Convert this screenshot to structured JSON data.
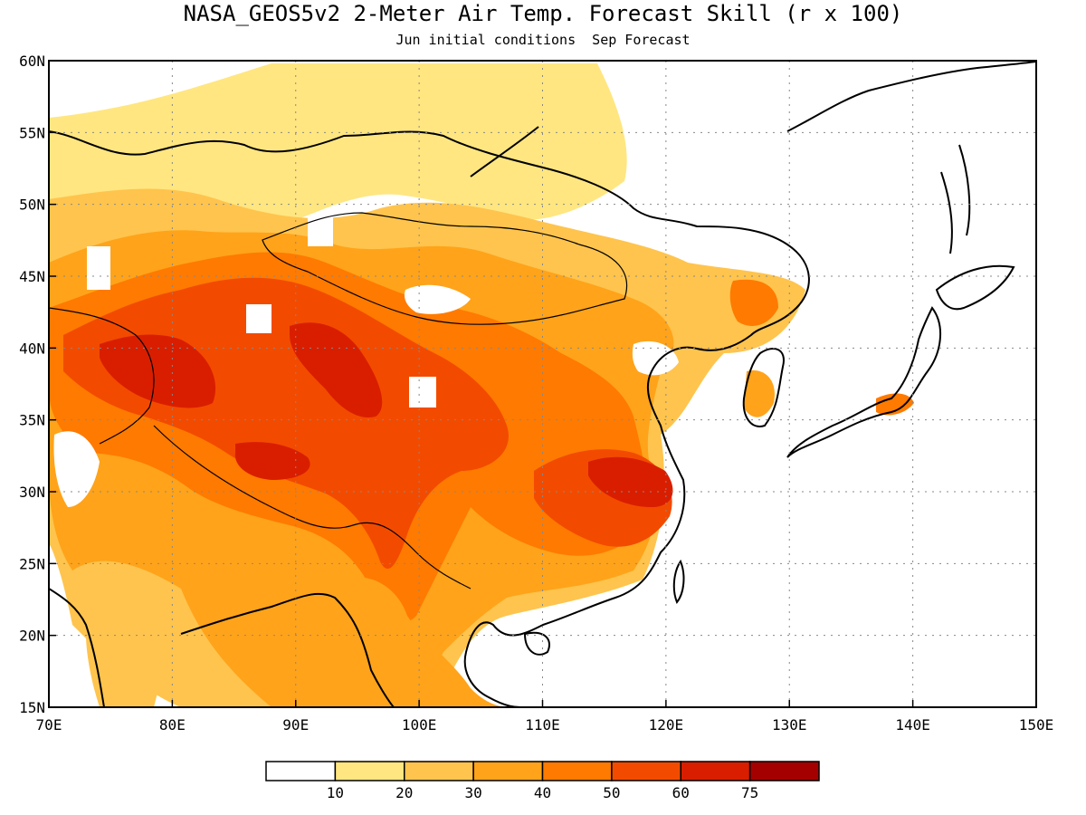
{
  "title": "NASA_GEOS5v2 2-Meter Air Temp. Forecast Skill (r x 100)",
  "subtitle": "Jun initial conditions  Sep Forecast",
  "map": {
    "lon_range": [
      70,
      150
    ],
    "lat_range": [
      15,
      60
    ],
    "lon_ticks": [
      "70E",
      "80E",
      "90E",
      "100E",
      "110E",
      "120E",
      "130E",
      "140E",
      "150E"
    ],
    "lat_ticks": [
      "15N",
      "20N",
      "25N",
      "30N",
      "35N",
      "40N",
      "45N",
      "50N",
      "55N",
      "60N"
    ],
    "grid": "dotted"
  },
  "legend": {
    "labels": [
      "10",
      "20",
      "30",
      "40",
      "50",
      "60",
      "75"
    ],
    "colors": [
      "#ffffff",
      "#ffe680",
      "#ffc44d",
      "#ffa31a",
      "#ff7a00",
      "#f24b00",
      "#d91e00",
      "#a50000"
    ]
  },
  "colors": {
    "c1": "#ffe680",
    "c2": "#ffc44d",
    "c3": "#ffa31a",
    "c4": "#ff7a00",
    "c5": "#f24b00",
    "c6": "#d91e00"
  }
}
